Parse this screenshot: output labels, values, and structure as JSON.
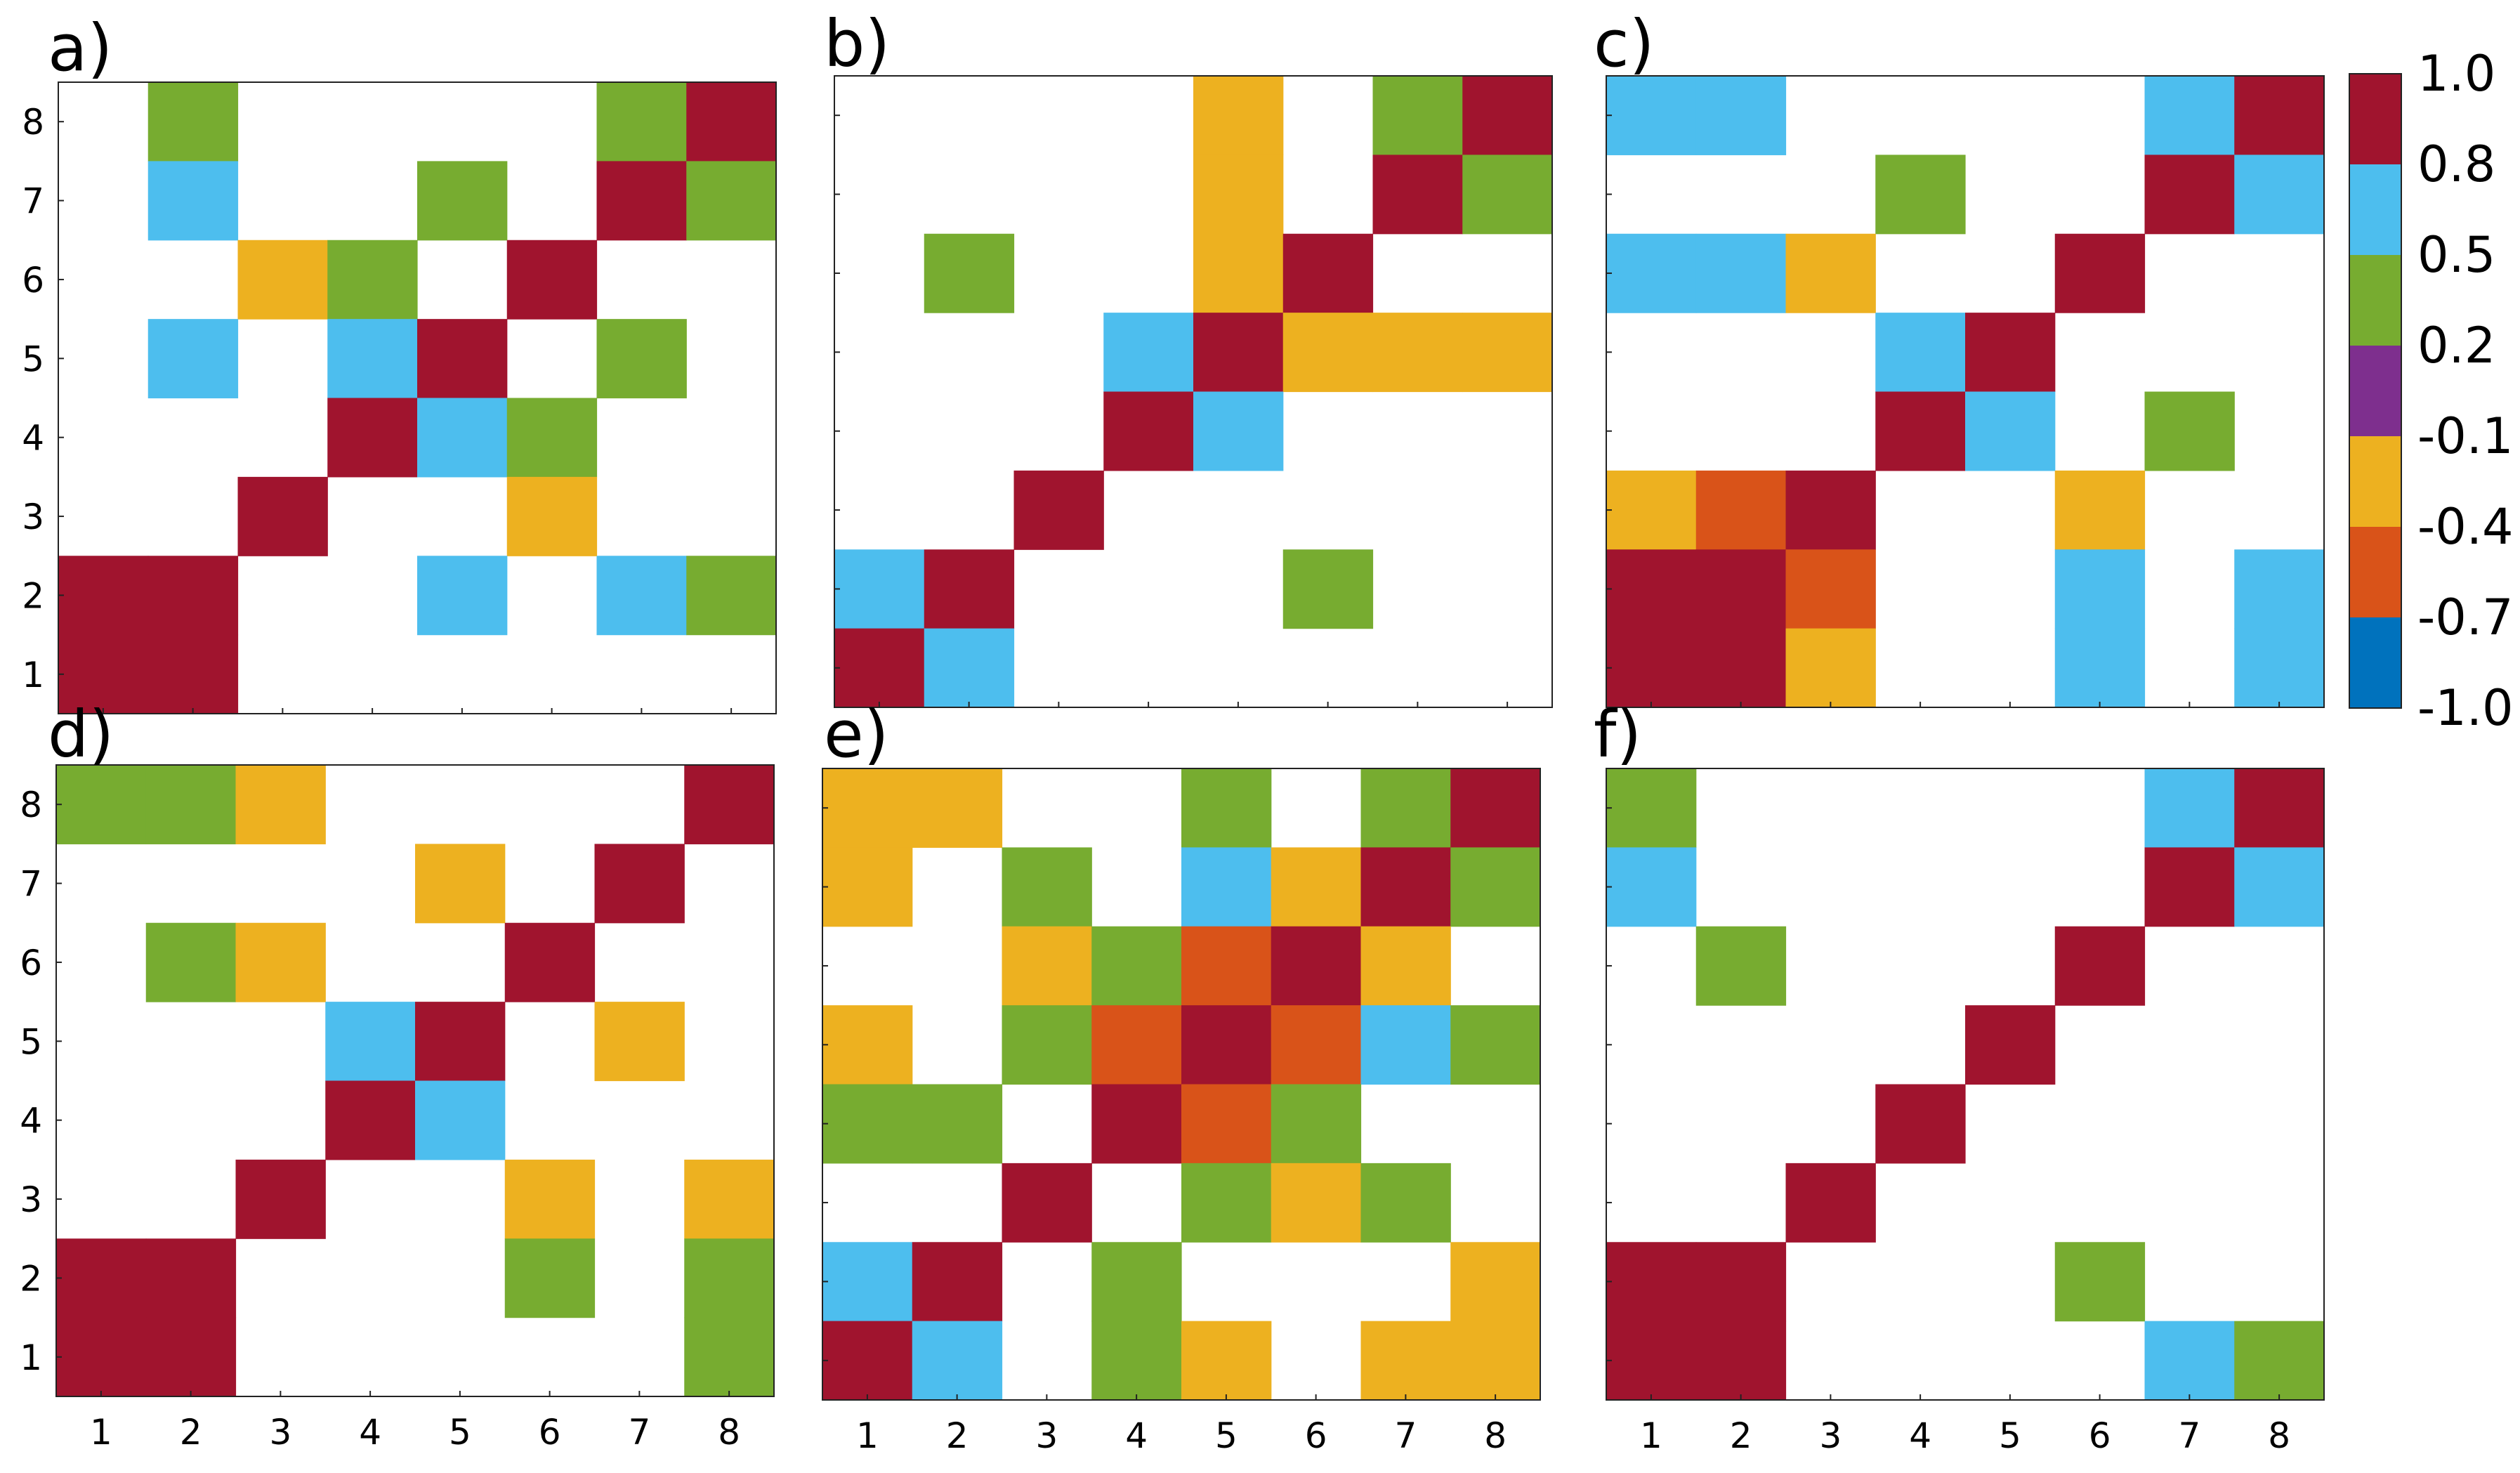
{
  "colors": {
    "c1": "#A0142E",
    "c2": "#4DBEEE",
    "c3": "#77AC30",
    "c4": "#7E2F8E",
    "c5": "#EDB120",
    "c6": "#D95319",
    "c7": "#0072BD",
    "frame": "#222222",
    "text": "#000000"
  },
  "chart_data": {
    "type": "heatmap",
    "x_ticks": [
      "1",
      "2",
      "3",
      "4",
      "5",
      "6",
      "7",
      "8"
    ],
    "y_ticks": [
      "1",
      "2",
      "3",
      "4",
      "5",
      "6",
      "7",
      "8"
    ],
    "colorbar": {
      "labels": [
        "1.0",
        "0.8",
        "0.5",
        "0.2",
        "-0.1",
        "-0.4",
        "-0.7",
        "-1.0"
      ],
      "bins_top_to_bottom": [
        "c1",
        "c2",
        "c3",
        "c4",
        "c5",
        "c6",
        "c7"
      ]
    },
    "panels": [
      {
        "label": "a)",
        "rows_top_to_bottom": [
          [
            0,
            "c3",
            0,
            0,
            0,
            0,
            "c3",
            "c1"
          ],
          [
            0,
            "c2",
            0,
            0,
            "c3",
            0,
            "c1",
            "c3"
          ],
          [
            0,
            0,
            "c5",
            "c3",
            0,
            "c1",
            0,
            0
          ],
          [
            0,
            "c2",
            0,
            "c2",
            "c1",
            0,
            "c3",
            0
          ],
          [
            0,
            0,
            0,
            "c1",
            "c2",
            "c3",
            0,
            0
          ],
          [
            0,
            0,
            "c1",
            0,
            0,
            "c5",
            0,
            0
          ],
          [
            "c1",
            "c1",
            0,
            0,
            "c2",
            0,
            "c2",
            "c3"
          ],
          [
            "c1",
            "c1",
            0,
            0,
            0,
            0,
            0,
            0
          ]
        ]
      },
      {
        "label": "b)",
        "rows_top_to_bottom": [
          [
            0,
            0,
            0,
            0,
            "c5",
            0,
            "c3",
            "c1"
          ],
          [
            0,
            0,
            0,
            0,
            "c5",
            0,
            "c1",
            "c3"
          ],
          [
            0,
            "c3",
            0,
            0,
            "c5",
            "c1",
            0,
            0
          ],
          [
            0,
            0,
            0,
            "c2",
            "c1",
            "c5",
            "c5",
            "c5"
          ],
          [
            0,
            0,
            0,
            "c1",
            "c2",
            0,
            0,
            0
          ],
          [
            0,
            0,
            "c1",
            0,
            0,
            0,
            0,
            0
          ],
          [
            "c2",
            "c1",
            0,
            0,
            0,
            "c3",
            0,
            0
          ],
          [
            "c1",
            "c2",
            0,
            0,
            0,
            0,
            0,
            0
          ]
        ]
      },
      {
        "label": "c)",
        "rows_top_to_bottom": [
          [
            "c2",
            "c2",
            0,
            0,
            0,
            0,
            "c2",
            "c1"
          ],
          [
            0,
            0,
            0,
            "c3",
            0,
            0,
            "c1",
            "c2"
          ],
          [
            "c2",
            "c2",
            "c5",
            0,
            0,
            "c1",
            0,
            0
          ],
          [
            0,
            0,
            0,
            "c2",
            "c1",
            0,
            0,
            0
          ],
          [
            0,
            0,
            0,
            "c1",
            "c2",
            0,
            "c3",
            0
          ],
          [
            "c5",
            "c6",
            "c1",
            0,
            0,
            "c5",
            0,
            0
          ],
          [
            "c1",
            "c1",
            "c6",
            0,
            0,
            "c2",
            0,
            "c2"
          ],
          [
            "c1",
            "c1",
            "c5",
            0,
            0,
            "c2",
            0,
            "c2"
          ]
        ]
      },
      {
        "label": "d)",
        "rows_top_to_bottom": [
          [
            "c3",
            "c3",
            "c5",
            0,
            0,
            0,
            0,
            "c1"
          ],
          [
            0,
            0,
            0,
            0,
            "c5",
            0,
            "c1",
            0
          ],
          [
            0,
            "c3",
            "c5",
            0,
            0,
            "c1",
            0,
            0
          ],
          [
            0,
            0,
            0,
            "c2",
            "c1",
            0,
            "c5",
            0
          ],
          [
            0,
            0,
            0,
            "c1",
            "c2",
            0,
            0,
            0
          ],
          [
            0,
            0,
            "c1",
            0,
            0,
            "c5",
            0,
            "c5"
          ],
          [
            "c1",
            "c1",
            0,
            0,
            0,
            "c3",
            0,
            "c3"
          ],
          [
            "c1",
            "c1",
            0,
            0,
            0,
            0,
            0,
            "c3"
          ]
        ]
      },
      {
        "label": "e)",
        "rows_top_to_bottom": [
          [
            "c5",
            "c5",
            0,
            0,
            "c3",
            0,
            "c3",
            "c1"
          ],
          [
            "c5",
            0,
            "c3",
            0,
            "c2",
            "c5",
            "c1",
            "c3"
          ],
          [
            0,
            0,
            "c5",
            "c3",
            "c6",
            "c1",
            "c5",
            0
          ],
          [
            "c5",
            0,
            "c3",
            "c6",
            "c1",
            "c6",
            "c2",
            "c3"
          ],
          [
            "c3",
            "c3",
            0,
            "c1",
            "c6",
            "c3",
            0,
            0
          ],
          [
            0,
            0,
            "c1",
            0,
            "c3",
            "c5",
            "c3",
            0
          ],
          [
            "c2",
            "c1",
            0,
            "c3",
            0,
            0,
            0,
            "c5"
          ],
          [
            "c1",
            "c2",
            0,
            "c3",
            "c5",
            0,
            "c5",
            "c5"
          ]
        ]
      },
      {
        "label": "f)",
        "rows_top_to_bottom": [
          [
            "c3",
            0,
            0,
            0,
            0,
            0,
            "c2",
            "c1"
          ],
          [
            "c2",
            0,
            0,
            0,
            0,
            0,
            "c1",
            "c2"
          ],
          [
            0,
            "c3",
            0,
            0,
            0,
            "c1",
            0,
            0
          ],
          [
            0,
            0,
            0,
            0,
            "c1",
            0,
            0,
            0
          ],
          [
            0,
            0,
            0,
            "c1",
            0,
            0,
            0,
            0
          ],
          [
            0,
            0,
            "c1",
            0,
            0,
            0,
            0,
            0
          ],
          [
            "c1",
            "c1",
            0,
            0,
            0,
            "c3",
            0,
            0
          ],
          [
            "c1",
            "c1",
            0,
            0,
            0,
            0,
            "c2",
            "c3"
          ]
        ]
      }
    ]
  }
}
